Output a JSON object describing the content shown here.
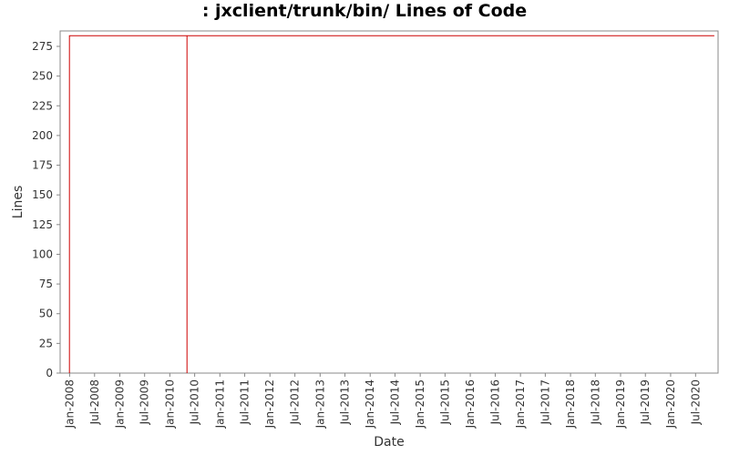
{
  "chart_data": {
    "type": "line",
    "title": ": jxclient/trunk/bin/ Lines of Code",
    "xlabel": "Date",
    "ylabel": "Lines",
    "ylim": [
      0,
      288
    ],
    "xlim": [
      "2007-10-24",
      "2020-12-12"
    ],
    "grid": false,
    "legend": "none",
    "yticks": [
      0,
      25,
      50,
      75,
      100,
      125,
      150,
      175,
      200,
      225,
      250,
      275
    ],
    "xticks": [
      "Jan-2008",
      "Jul-2008",
      "Jan-2009",
      "Jul-2009",
      "Jan-2010",
      "Jul-2010",
      "Jan-2011",
      "Jul-2011",
      "Jan-2012",
      "Jul-2012",
      "Jan-2013",
      "Jul-2013",
      "Jan-2014",
      "Jul-2014",
      "Jan-2015",
      "Jul-2015",
      "Jan-2016",
      "Jul-2016",
      "Jan-2017",
      "Jul-2017",
      "Jan-2018",
      "Jul-2018",
      "Jan-2019",
      "Jul-2019",
      "Jan-2020",
      "Jul-2020"
    ],
    "series": [
      {
        "color": "#cc0000",
        "points": [
          {
            "x": "2007-12-31",
            "y": 0
          },
          {
            "x": "2007-12-31",
            "y": 284
          },
          {
            "x": "2010-05-06",
            "y": 284
          },
          {
            "x": "2010-05-06",
            "y": 0
          },
          {
            "x": "2010-05-06",
            "y": 284
          },
          {
            "x": "2020-11-15",
            "y": 284
          }
        ]
      }
    ]
  }
}
